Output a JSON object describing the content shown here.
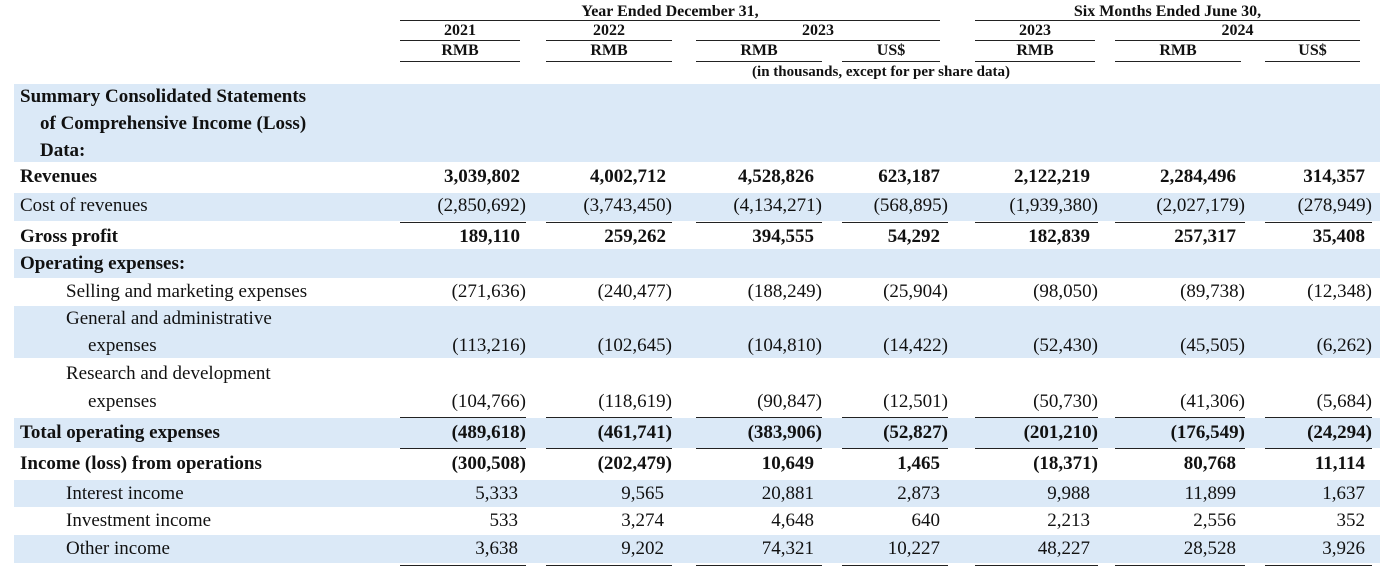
{
  "header": {
    "group_year": "Year Ended December 31,",
    "group_six": "Six Months Ended June 30,",
    "years": [
      "2021",
      "2022",
      "2023",
      "2023",
      "2024"
    ],
    "currencies": [
      "RMB",
      "RMB",
      "RMB",
      "US$",
      "RMB",
      "RMB",
      "US$"
    ],
    "note": "(in thousands, except for per share data)"
  },
  "section_title": {
    "line1": "Summary Consolidated Statements",
    "line2": "of Comprehensive Income (Loss)",
    "line3": "Data:"
  },
  "rows": [
    {
      "label": "Revenues",
      "values": [
        "3,039,802",
        "4,002,712",
        "4,528,826",
        "623,187",
        "2,122,219",
        "2,284,496",
        "314,357"
      ]
    },
    {
      "label": "Cost of revenues",
      "values": [
        "(2,850,692)",
        "(3,743,450)",
        "(4,134,271)",
        "(568,895)",
        "(1,939,380)",
        "(2,027,179)",
        "(278,949)"
      ]
    },
    {
      "label": "Gross profit",
      "values": [
        "189,110",
        "259,262",
        "394,555",
        "54,292",
        "182,839",
        "257,317",
        "35,408"
      ]
    },
    {
      "label": "Operating expenses:"
    },
    {
      "label": "Selling and marketing expenses",
      "values": [
        "(271,636)",
        "(240,477)",
        "(188,249)",
        "(25,904)",
        "(98,050)",
        "(89,738)",
        "(12,348)"
      ]
    },
    {
      "label_line1": "General and administrative",
      "label_line2": "expenses",
      "values": [
        "(113,216)",
        "(102,645)",
        "(104,810)",
        "(14,422)",
        "(52,430)",
        "(45,505)",
        "(6,262)"
      ]
    },
    {
      "label_line1": "Research and development",
      "label_line2": "expenses",
      "values": [
        "(104,766)",
        "(118,619)",
        "(90,847)",
        "(12,501)",
        "(50,730)",
        "(41,306)",
        "(5,684)"
      ]
    },
    {
      "label": "Total operating expenses",
      "values": [
        "(489,618)",
        "(461,741)",
        "(383,906)",
        "(52,827)",
        "(201,210)",
        "(176,549)",
        "(24,294)"
      ]
    },
    {
      "label": "Income (loss) from operations",
      "values": [
        "(300,508)",
        "(202,479)",
        "10,649",
        "1,465",
        "(18,371)",
        "80,768",
        "11,114"
      ]
    },
    {
      "label": "Interest income",
      "values": [
        "5,333",
        "9,565",
        "20,881",
        "2,873",
        "9,988",
        "11,899",
        "1,637"
      ]
    },
    {
      "label": "Investment income",
      "values": [
        "533",
        "3,274",
        "4,648",
        "640",
        "2,213",
        "2,556",
        "352"
      ]
    },
    {
      "label": "Other income",
      "values": [
        "3,638",
        "9,202",
        "74,321",
        "10,227",
        "48,227",
        "28,528",
        "3,926"
      ]
    }
  ]
}
